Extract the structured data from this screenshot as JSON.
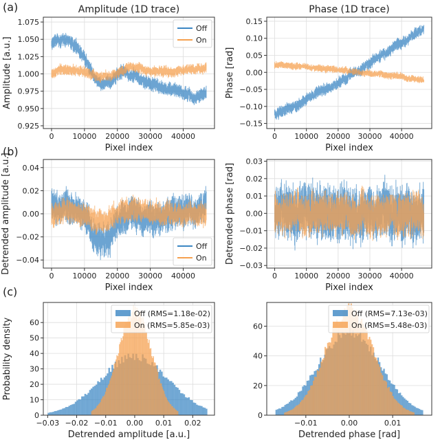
{
  "colors": {
    "off": "#3b86c3",
    "on": "#f5a04f",
    "frame": "#333333",
    "grid": "#dddddd"
  },
  "panel_labels": [
    "(a)",
    "(b)",
    "(c)"
  ],
  "chart_data": [
    {
      "id": "amp1d",
      "type": "line",
      "title": "Amplitude (1D trace)",
      "xlabel": "Pixel index",
      "ylabel": "Amplitude [a.u.]",
      "xlim": [
        -2500,
        49500
      ],
      "ylim": [
        0.921,
        1.082
      ],
      "xticks": [
        0,
        10000,
        20000,
        30000,
        40000
      ],
      "xtick_labels": [
        "0",
        "10000",
        "20000",
        "30000",
        "40000"
      ],
      "yticks": [
        0.925,
        0.95,
        0.975,
        1.0,
        1.025,
        1.05,
        1.075
      ],
      "ytick_labels": [
        "0.925",
        "0.950",
        "0.975",
        "1.000",
        "1.025",
        "1.050",
        "1.075"
      ],
      "grid": true,
      "legend": "top-right",
      "series": [
        {
          "name": "Off",
          "x": [
            0,
            2000,
            4000,
            6000,
            8000,
            10000,
            12000,
            14000,
            16000,
            18000,
            20000,
            22000,
            24000,
            26000,
            28000,
            30000,
            32000,
            34000,
            36000,
            38000,
            40000,
            42000,
            44000,
            46000,
            47000
          ],
          "y": [
            1.045,
            1.048,
            1.05,
            1.042,
            1.035,
            1.025,
            1.005,
            0.99,
            0.985,
            0.99,
            1.0,
            1.003,
            1.0,
            0.995,
            0.99,
            0.988,
            0.985,
            0.982,
            0.978,
            0.975,
            0.972,
            0.968,
            0.965,
            0.97,
            0.975
          ],
          "band": 0.012
        },
        {
          "name": "On",
          "x": [
            0,
            2000,
            4000,
            6000,
            8000,
            10000,
            12000,
            14000,
            16000,
            18000,
            20000,
            22000,
            24000,
            26000,
            28000,
            30000,
            32000,
            34000,
            36000,
            38000,
            40000,
            42000,
            44000,
            46000,
            47000
          ],
          "y": [
            1.0,
            1.005,
            1.007,
            1.006,
            1.004,
            1.003,
            1.0,
            0.997,
            0.996,
            0.998,
            1.002,
            1.006,
            1.01,
            1.008,
            1.005,
            1.003,
            1.004,
            1.005,
            1.004,
            1.005,
            1.006,
            1.007,
            1.006,
            1.008,
            1.01
          ],
          "band": 0.009
        }
      ]
    },
    {
      "id": "phase1d",
      "type": "line",
      "title": "Phase (1D trace)",
      "xlabel": "Pixel index",
      "ylabel": "Phase [rad]",
      "xlim": [
        -2500,
        49500
      ],
      "ylim": [
        -0.165,
        0.162
      ],
      "xticks": [
        0,
        10000,
        20000,
        30000,
        40000
      ],
      "xtick_labels": [
        "0",
        "10000",
        "20000",
        "30000",
        "40000"
      ],
      "yticks": [
        -0.15,
        -0.1,
        -0.05,
        0.0,
        0.05,
        0.1,
        0.15
      ],
      "ytick_labels": [
        "−0.15",
        "−0.10",
        "−0.05",
        "0.00",
        "0.05",
        "0.10",
        "0.15"
      ],
      "grid": true,
      "legend": "none",
      "series": [
        {
          "name": "Off",
          "x": [
            0,
            2000,
            4000,
            6000,
            8000,
            10000,
            12000,
            14000,
            16000,
            18000,
            20000,
            22000,
            24000,
            26000,
            28000,
            30000,
            32000,
            34000,
            36000,
            38000,
            40000,
            42000,
            44000,
            46000,
            47000
          ],
          "y": [
            -0.125,
            -0.118,
            -0.105,
            -0.1,
            -0.09,
            -0.078,
            -0.07,
            -0.06,
            -0.052,
            -0.04,
            -0.03,
            -0.02,
            -0.008,
            0.005,
            0.015,
            0.025,
            0.04,
            0.05,
            0.06,
            0.075,
            0.085,
            0.095,
            0.108,
            0.118,
            0.125
          ],
          "band": 0.02
        },
        {
          "name": "On",
          "x": [
            0,
            5000,
            10000,
            15000,
            20000,
            25000,
            30000,
            35000,
            40000,
            45000,
            47000
          ],
          "y": [
            0.022,
            0.019,
            0.016,
            0.012,
            0.008,
            0.003,
            -0.002,
            -0.008,
            -0.014,
            -0.02,
            -0.023
          ],
          "band": 0.012
        }
      ]
    },
    {
      "id": "ampdet",
      "type": "line",
      "title": "",
      "xlabel": "Pixel index",
      "ylabel": "Detrended amplitude [a.u.]",
      "xlim": [
        -2500,
        49500
      ],
      "ylim": [
        -0.047,
        0.047
      ],
      "xticks": [
        0,
        10000,
        20000,
        30000,
        40000
      ],
      "xtick_labels": [
        "0",
        "10000",
        "20000",
        "30000",
        "40000"
      ],
      "yticks": [
        -0.04,
        -0.02,
        0.0,
        0.02,
        0.04
      ],
      "ytick_labels": [
        "−0.04",
        "−0.02",
        "0.00",
        "0.02",
        "0.04"
      ],
      "grid": true,
      "legend": "bottom-right",
      "series": [
        {
          "name": "Off",
          "x": [
            0,
            2000,
            4000,
            6000,
            8000,
            10000,
            12000,
            14000,
            16000,
            18000,
            20000,
            22000,
            24000,
            26000,
            28000,
            30000,
            32000,
            34000,
            36000,
            38000,
            40000,
            42000,
            44000,
            46000,
            47000
          ],
          "y": [
            0.006,
            0.008,
            0.01,
            0.006,
            0.004,
            -0.002,
            -0.012,
            -0.02,
            -0.024,
            -0.018,
            -0.008,
            -0.002,
            0.0,
            -0.002,
            -0.004,
            -0.006,
            -0.004,
            -0.002,
            0.0,
            0.002,
            0.002,
            0.0,
            0.004,
            0.008,
            0.01
          ],
          "band": 0.017
        },
        {
          "name": "On",
          "x": [
            0,
            2000,
            4000,
            6000,
            8000,
            10000,
            12000,
            14000,
            16000,
            18000,
            20000,
            22000,
            24000,
            26000,
            28000,
            30000,
            32000,
            34000,
            36000,
            38000,
            40000,
            42000,
            44000,
            46000,
            47000
          ],
          "y": [
            0.0,
            0.002,
            0.003,
            0.002,
            0.0,
            -0.001,
            -0.004,
            -0.006,
            -0.005,
            -0.002,
            0.001,
            0.003,
            0.004,
            0.003,
            0.001,
            0.0,
            0.001,
            0.002,
            0.001,
            0.0,
            0.0,
            0.001,
            0.0,
            -0.001,
            0.0
          ],
          "band": 0.012
        }
      ]
    },
    {
      "id": "phasedet",
      "type": "line",
      "title": "",
      "xlabel": "Pixel index",
      "ylabel": "Detrended phase [rad]",
      "xlim": [
        -2500,
        49500
      ],
      "ylim": [
        -0.0315,
        0.031
      ],
      "xticks": [
        0,
        10000,
        20000,
        30000,
        40000
      ],
      "xtick_labels": [
        "0",
        "10000",
        "20000",
        "30000",
        "40000"
      ],
      "yticks": [
        -0.03,
        -0.02,
        -0.01,
        0.0,
        0.01,
        0.02,
        0.03
      ],
      "ytick_labels": [
        "−0.03",
        "−0.02",
        "−0.01",
        "0.00",
        "0.01",
        "0.02",
        "0.03"
      ],
      "grid": true,
      "legend": "none",
      "series": [
        {
          "name": "Off",
          "x": [
            0,
            47000
          ],
          "y": [
            0.0,
            0.0
          ],
          "band": 0.019
        },
        {
          "name": "On",
          "x": [
            0,
            47000
          ],
          "y": [
            0.0,
            0.0
          ],
          "band": 0.014
        }
      ]
    },
    {
      "id": "amphist",
      "type": "histogram",
      "title": "",
      "xlabel": "Detrended amplitude [a.u.]",
      "ylabel": "Probability density",
      "xlim": [
        -0.0315,
        0.0275
      ],
      "ylim": [
        0,
        73
      ],
      "xticks": [
        -0.03,
        -0.02,
        -0.01,
        0.0,
        0.01,
        0.02
      ],
      "xtick_labels": [
        "−0.03",
        "−0.02",
        "−0.01",
        "0.00",
        "0.01",
        "0.02"
      ],
      "yticks": [
        0,
        10,
        20,
        30,
        40,
        50,
        60
      ],
      "ytick_labels": [
        "0",
        "10",
        "20",
        "30",
        "40",
        "50",
        "60"
      ],
      "grid": true,
      "legend": "top-right",
      "series": [
        {
          "name": "Off",
          "legend_label": "Off (RMS=1.18e-02)",
          "range": [
            -0.03,
            0.025
          ],
          "bins": 100,
          "rms": 0.0118,
          "peak_density": 38
        },
        {
          "name": "On",
          "legend_label": "On  (RMS=5.85e-03)",
          "range": [
            -0.015,
            0.015
          ],
          "bins": 100,
          "rms": 0.00585,
          "peak_density": 67
        }
      ]
    },
    {
      "id": "phasehist",
      "type": "histogram",
      "title": "",
      "xlabel": "Detrended phase [rad]",
      "ylabel": "",
      "xlim": [
        -0.019,
        0.019
      ],
      "ylim": [
        0,
        76
      ],
      "xticks": [
        -0.01,
        0.0,
        0.01
      ],
      "xtick_labels": [
        "−0.01",
        "0.00",
        "0.01"
      ],
      "yticks": [
        0,
        20,
        40,
        60
      ],
      "ytick_labels": [
        "0",
        "20",
        "40",
        "60"
      ],
      "grid": true,
      "legend": "top-right",
      "series": [
        {
          "name": "Off",
          "legend_label": "Off (RMS=7.13e-03)",
          "range": [
            -0.017,
            0.017
          ],
          "bins": 100,
          "rms": 0.00713,
          "peak_density": 56
        },
        {
          "name": "On",
          "legend_label": "On  (RMS=5.48e-03)",
          "range": [
            -0.015,
            0.015
          ],
          "bins": 100,
          "rms": 0.00548,
          "peak_density": 72
        }
      ]
    }
  ]
}
